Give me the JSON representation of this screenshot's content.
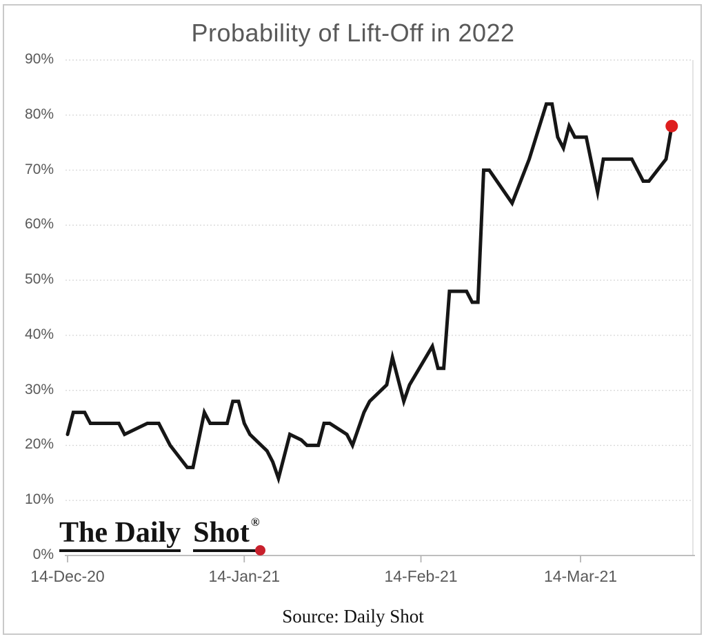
{
  "frame": {
    "border_color": "#c9c9c9",
    "background": "#ffffff"
  },
  "header": {
    "title": "Probability of Lift-Off in 2022",
    "title_color": "#595959"
  },
  "chart_data": {
    "type": "line",
    "title": "Probability of Lift-Off in 2022",
    "xlabel": "",
    "ylabel": "",
    "ylim": [
      0,
      90
    ],
    "x_range": [
      "2020-12-14",
      "2021-03-31"
    ],
    "y_tick_labels": [
      "0%",
      "10%",
      "20%",
      "30%",
      "40%",
      "50%",
      "60%",
      "70%",
      "80%",
      "90%"
    ],
    "x_ticks": [
      {
        "date": "2020-12-14",
        "label": "14-Dec-20"
      },
      {
        "date": "2021-01-14",
        "label": "14-Jan-21"
      },
      {
        "date": "2021-02-14",
        "label": "14-Feb-21"
      },
      {
        "date": "2021-03-14",
        "label": "14-Mar-21"
      }
    ],
    "grid": {
      "horizontal": true,
      "vertical": false,
      "style": "dotted",
      "color": "#d9d9d9"
    },
    "axis_line_color": "#b5b5b5",
    "legend": "none",
    "line_color": "#161616",
    "line_width": 5,
    "end_marker": {
      "shape": "circle",
      "color": "#de1e1e",
      "radius": 9,
      "date": "2021-03-30",
      "value": 78
    },
    "series": [
      {
        "name": "Probability of Lift-Off in 2022",
        "points": [
          [
            "2020-12-14",
            22
          ],
          [
            "2020-12-15",
            26
          ],
          [
            "2020-12-17",
            26
          ],
          [
            "2020-12-18",
            24
          ],
          [
            "2020-12-23",
            24
          ],
          [
            "2020-12-24",
            22
          ],
          [
            "2020-12-28",
            24
          ],
          [
            "2020-12-30",
            24
          ],
          [
            "2021-01-01",
            20
          ],
          [
            "2021-01-04",
            16
          ],
          [
            "2021-01-05",
            16
          ],
          [
            "2021-01-07",
            26
          ],
          [
            "2021-01-08",
            24
          ],
          [
            "2021-01-11",
            24
          ],
          [
            "2021-01-12",
            28
          ],
          [
            "2021-01-13",
            28
          ],
          [
            "2021-01-14",
            24
          ],
          [
            "2021-01-15",
            22
          ],
          [
            "2021-01-18",
            19
          ],
          [
            "2021-01-19",
            17
          ],
          [
            "2021-01-20",
            14
          ],
          [
            "2021-01-22",
            22
          ],
          [
            "2021-01-24",
            21
          ],
          [
            "2021-01-25",
            20
          ],
          [
            "2021-01-27",
            20
          ],
          [
            "2021-01-28",
            24
          ],
          [
            "2021-01-29",
            24
          ],
          [
            "2021-02-01",
            22
          ],
          [
            "2021-02-02",
            20
          ],
          [
            "2021-02-04",
            26
          ],
          [
            "2021-02-05",
            28
          ],
          [
            "2021-02-08",
            31
          ],
          [
            "2021-02-09",
            36
          ],
          [
            "2021-02-11",
            28
          ],
          [
            "2021-02-12",
            31
          ],
          [
            "2021-02-16",
            38
          ],
          [
            "2021-02-17",
            34
          ],
          [
            "2021-02-18",
            34
          ],
          [
            "2021-02-19",
            48
          ],
          [
            "2021-02-22",
            48
          ],
          [
            "2021-02-23",
            46
          ],
          [
            "2021-02-24",
            46
          ],
          [
            "2021-02-25",
            70
          ],
          [
            "2021-02-26",
            70
          ],
          [
            "2021-03-02",
            64
          ],
          [
            "2021-03-05",
            72
          ],
          [
            "2021-03-08",
            82
          ],
          [
            "2021-03-09",
            82
          ],
          [
            "2021-03-10",
            76
          ],
          [
            "2021-03-11",
            74
          ],
          [
            "2021-03-12",
            78
          ],
          [
            "2021-03-13",
            76
          ],
          [
            "2021-03-15",
            76
          ],
          [
            "2021-03-17",
            66
          ],
          [
            "2021-03-18",
            72
          ],
          [
            "2021-03-23",
            72
          ],
          [
            "2021-03-25",
            68
          ],
          [
            "2021-03-26",
            68
          ],
          [
            "2021-03-29",
            72
          ],
          [
            "2021-03-30",
            78
          ]
        ]
      }
    ]
  },
  "logo": {
    "part1": "The Daily",
    "part2": "Shot",
    "registered_mark": "®",
    "text_color": "#141414",
    "dot_color": "#c8202c"
  },
  "footer": {
    "source_text": "Source: Daily Shot"
  }
}
